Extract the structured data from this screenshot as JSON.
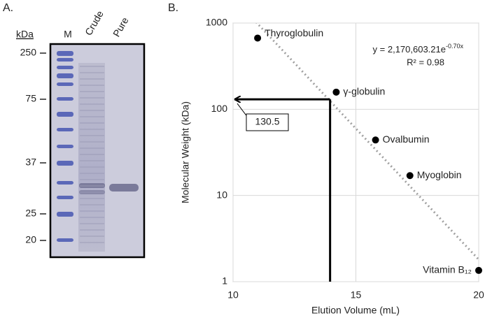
{
  "panel_a": {
    "label": "A.",
    "unit": "kDa",
    "lanes": [
      "M",
      "Crude",
      "Pure"
    ],
    "markers": [
      250,
      75,
      37,
      25,
      20
    ]
  },
  "chart_data": {
    "type": "scatter",
    "panel_label": "B.",
    "x_label": "Elution Volume (mL)",
    "y_label": "Molecular Weight (kDa)",
    "x": [
      11,
      14.2,
      15.8,
      17.2,
      20
    ],
    "values": [
      670,
      158,
      44,
      17,
      1.35
    ],
    "point_labels": [
      "Thyroglobulin",
      "γ-globulin",
      "Ovalbumin",
      "Myoglobin",
      "Vitamin B₁₂"
    ],
    "color": "#000000",
    "xlim": [
      10,
      20
    ],
    "xticks": [
      10,
      15,
      20
    ],
    "ylim": [
      1,
      1000
    ],
    "yticks": [
      1,
      10,
      100,
      1000
    ],
    "log_y": true,
    "grid": true,
    "trendline": {
      "a": 2170603.21,
      "b": -0.7,
      "label": "y = 2,170,603.21e",
      "label_exponent": "-0.70x",
      "r2_label": "R² = 0.98",
      "color": "#a0a0a0"
    },
    "annotation": {
      "x": 13.95,
      "y": 130.5,
      "label": "130.5"
    }
  }
}
